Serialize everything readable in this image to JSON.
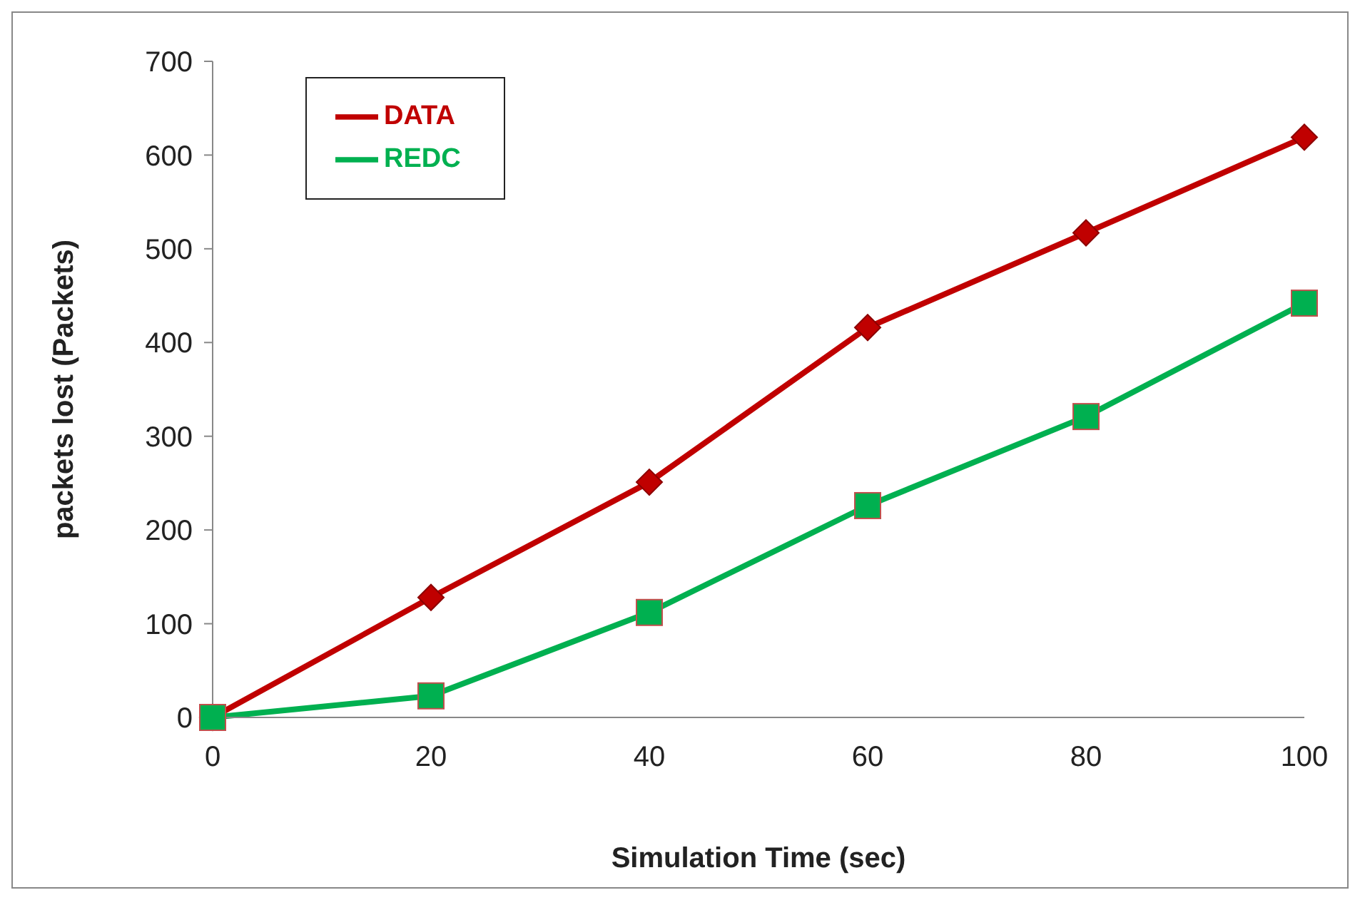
{
  "chart_data": {
    "type": "line",
    "xlabel": "Simulation Time (sec)",
    "ylabel": "packets lost (Packets)",
    "x": [
      0,
      20,
      40,
      60,
      80,
      100
    ],
    "series": [
      {
        "name": "DATA",
        "color": "#c00000",
        "marker": "diamond",
        "values": [
          0,
          128,
          251,
          416,
          517,
          619
        ]
      },
      {
        "name": "REDC",
        "color": "#00b050",
        "marker": "square",
        "values": [
          0,
          23,
          112,
          226,
          321,
          442
        ]
      }
    ],
    "xlim": [
      0,
      100
    ],
    "xticks": [
      0,
      20,
      40,
      60,
      80,
      100
    ],
    "ylim": [
      0,
      700
    ],
    "yticks": [
      0,
      100,
      200,
      300,
      400,
      500,
      600,
      700
    ],
    "grid": false,
    "legend": "top left"
  }
}
